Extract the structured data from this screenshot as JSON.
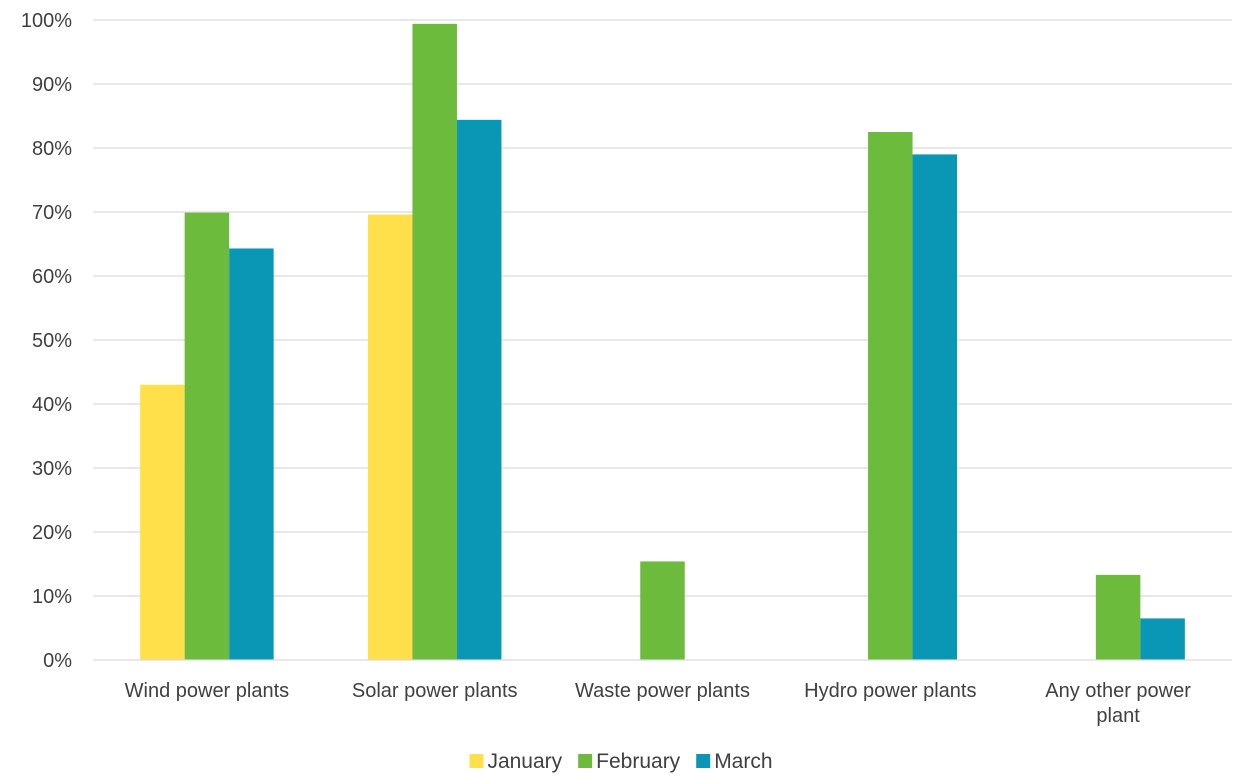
{
  "chart_data": {
    "type": "bar",
    "title": "",
    "xlabel": "",
    "ylabel": "",
    "categories": [
      [
        "Wind power plants"
      ],
      [
        "Solar power plants"
      ],
      [
        "Waste power plants"
      ],
      [
        "Hydro power plants"
      ],
      [
        "Any other power",
        "plant"
      ]
    ],
    "series": [
      {
        "name": "January",
        "color": "#FFE04B",
        "values": [
          43,
          69.6,
          null,
          null,
          null
        ]
      },
      {
        "name": "February",
        "color": "#6CBB3C",
        "values": [
          69.9,
          99.4,
          15.4,
          82.5,
          13.3
        ]
      },
      {
        "name": "March",
        "color": "#0A97B5",
        "values": [
          64.3,
          84.4,
          null,
          79,
          6.5
        ]
      }
    ],
    "ylim": [
      0,
      100
    ],
    "y_ticks": [
      0,
      10,
      20,
      30,
      40,
      50,
      60,
      70,
      80,
      90,
      100
    ],
    "y_tick_format": "percent",
    "grid": true,
    "gridline_color": "#D9D9D9",
    "legend_position": "bottom"
  }
}
